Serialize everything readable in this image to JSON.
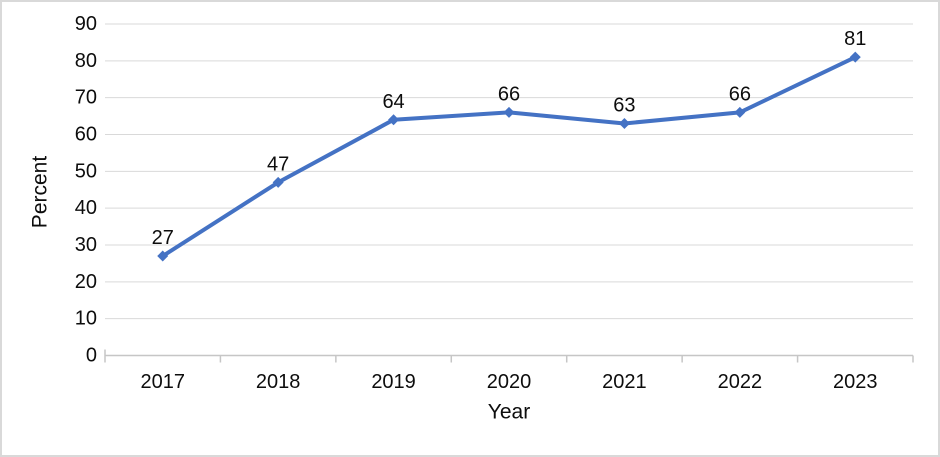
{
  "chart_data": {
    "type": "line",
    "title": "",
    "x": [
      "2017",
      "2018",
      "2019",
      "2020",
      "2021",
      "2022",
      "2023"
    ],
    "series": [
      {
        "name": "Percent",
        "values": [
          27,
          47,
          64,
          66,
          63,
          66,
          81
        ]
      }
    ],
    "data_labels": [
      27,
      47,
      64,
      66,
      63,
      66,
      81
    ],
    "xlabel": "Year",
    "ylabel": "Percent",
    "ylim": [
      0,
      90
    ],
    "ytick_step": 10,
    "yticks": [
      0,
      10,
      20,
      30,
      40,
      50,
      60,
      70,
      80,
      90
    ],
    "grid": true,
    "legend": false,
    "marker": "diamond",
    "colors": {
      "series": "#4472C4",
      "gridline": "#D9D9D9",
      "axis": "#C6C6C6",
      "text": "#0D0D0D",
      "frame_border": "#D9D9D9",
      "background": "#FFFFFF"
    }
  }
}
